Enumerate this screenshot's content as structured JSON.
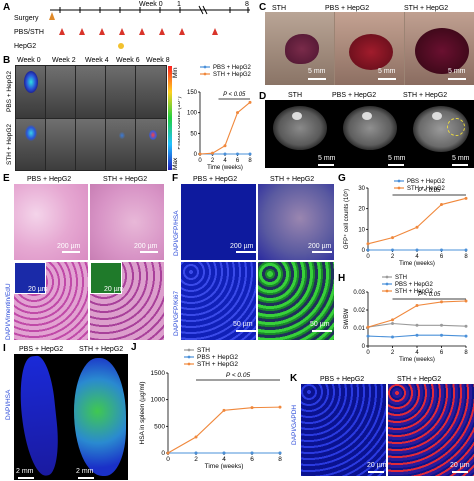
{
  "panels": {
    "A": {
      "label": "A",
      "week_header": "Week 0",
      "tick_1": "1",
      "tick_8": "8",
      "rows": [
        "Surgery",
        "PBS/STH",
        "HepG2"
      ]
    },
    "B": {
      "label": "B",
      "weeks": [
        "Week 0",
        "Week 2",
        "Week 4",
        "Week 6",
        "Week 8"
      ],
      "row_labels": [
        "PBS + HepG2",
        "STH + HepG2"
      ],
      "scale_min": "Min",
      "scale_max": "Max"
    },
    "C": {
      "label": "C",
      "titles": [
        "STH",
        "PBS + HepG2",
        "STH + HepG2"
      ],
      "scalebars": [
        "5 mm",
        "5 mm",
        "5 mm"
      ]
    },
    "D": {
      "label": "D",
      "titles": [
        "STH",
        "PBS + HepG2",
        "STH + HepG2"
      ],
      "scalebars": [
        "5 mm",
        "5 mm",
        "5 mm"
      ]
    },
    "E": {
      "label": "E",
      "titles": [
        "PBS + HepG2",
        "STH + HepG2"
      ],
      "side_label": "DAPI/Vimentin/EdU",
      "scalebars": [
        "200 µm",
        "200 µm",
        "20 µm",
        "20 µm"
      ]
    },
    "F": {
      "label": "F",
      "titles": [
        "PBS + HepG2",
        "STH + HepG2"
      ],
      "side_label_top": "DAPI/GFP/HSA",
      "side_label_bottom": "DAPI/GFP/Ki67",
      "scalebars": [
        "200 µm",
        "200 µm",
        "50 µm",
        "50 µm"
      ]
    },
    "G": {
      "label": "G"
    },
    "H": {
      "label": "H"
    },
    "I": {
      "label": "I",
      "titles": [
        "PBS + HepG2",
        "STH + HepG2"
      ],
      "side_label": "DAPI/HSA",
      "scalebars": [
        "2 mm",
        "2 mm"
      ]
    },
    "J": {
      "label": "J"
    },
    "K": {
      "label": "K",
      "titles": [
        "PBS + HepG2",
        "STH + HepG2"
      ],
      "side_label": "DAPI/GAPDH",
      "scalebars": [
        "20 µm",
        "20 µm"
      ]
    }
  },
  "chart_data": [
    {
      "id": "B-chart",
      "type": "line",
      "x": [
        0,
        2,
        4,
        6,
        8
      ],
      "xlabel": "Time (weeks)",
      "ylabel": "Photon counts (10⁸)",
      "ylim": [
        0,
        150
      ],
      "yticks": [
        0,
        50,
        100,
        150
      ],
      "xticks": [
        0,
        2,
        4,
        6,
        8
      ],
      "annotation": "P < 0.05",
      "legend_placement": "top",
      "series": [
        {
          "name": "PBS + HepG2",
          "color": "#4a90d9",
          "values": [
            0,
            0,
            0,
            0,
            0
          ]
        },
        {
          "name": "STH + HepG2",
          "color": "#f0883c",
          "values": [
            0,
            2,
            20,
            100,
            125
          ]
        }
      ]
    },
    {
      "id": "G-chart",
      "type": "line",
      "x": [
        0,
        2,
        4,
        6,
        8
      ],
      "xlabel": "Time (weeks)",
      "ylabel": "GFP⁺ cell counts (10⁵)",
      "ylim": [
        0,
        30
      ],
      "yticks": [
        0,
        10,
        20,
        30
      ],
      "xticks": [
        0,
        2,
        4,
        6,
        8
      ],
      "annotation": "P < 0.05",
      "legend_placement": "top",
      "series": [
        {
          "name": "PBS + HepG2",
          "color": "#4a90d9",
          "values": [
            0,
            0,
            0,
            0,
            0
          ]
        },
        {
          "name": "STH + HepG2",
          "color": "#f0883c",
          "values": [
            3,
            6,
            11,
            22,
            25
          ]
        }
      ]
    },
    {
      "id": "H-chart",
      "type": "line",
      "x": [
        0,
        2,
        4,
        6,
        8
      ],
      "xlabel": "Time (weeks)",
      "ylabel": "SW/BW",
      "ylim": [
        0,
        0.03
      ],
      "yticks": [
        0,
        0.01,
        0.02,
        0.03
      ],
      "xticks": [
        0,
        2,
        4,
        6,
        8
      ],
      "annotation": "P < 0.05",
      "legend_placement": "top",
      "series": [
        {
          "name": "STH",
          "color": "#9a9a9a",
          "values": [
            0.0105,
            0.0125,
            0.0115,
            0.0115,
            0.011
          ]
        },
        {
          "name": "PBS + HepG2",
          "color": "#4a90d9",
          "values": [
            0.0055,
            0.005,
            0.006,
            0.006,
            0.0055
          ]
        },
        {
          "name": "STH + HepG2",
          "color": "#f0883c",
          "values": [
            0.0105,
            0.0145,
            0.0225,
            0.0245,
            0.025
          ]
        }
      ]
    },
    {
      "id": "J-chart",
      "type": "line",
      "x": [
        0,
        2,
        4,
        6,
        8
      ],
      "xlabel": "Time (weeks)",
      "ylabel": "HSA in spleen (µg/ml)",
      "ylim": [
        0,
        1500
      ],
      "yticks": [
        0,
        500,
        1000,
        1500
      ],
      "xticks": [
        0,
        2,
        4,
        6,
        8
      ],
      "annotation": "P < 0.05",
      "legend_placement": "top-left",
      "series": [
        {
          "name": "STH",
          "color": "#9a9a9a",
          "values": [
            0,
            0,
            0,
            0,
            0
          ]
        },
        {
          "name": "PBS + HepG2",
          "color": "#4a90d9",
          "values": [
            0,
            0,
            0,
            0,
            0
          ]
        },
        {
          "name": "STH + HepG2",
          "color": "#f0883c",
          "values": [
            0,
            300,
            800,
            850,
            860
          ]
        }
      ]
    }
  ]
}
